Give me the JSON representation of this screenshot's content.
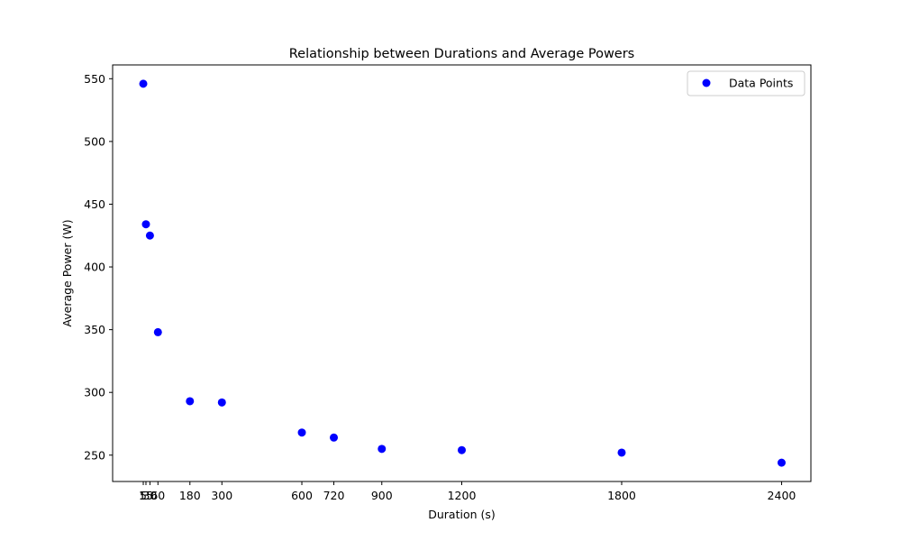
{
  "chart_data": {
    "type": "scatter",
    "title": "Relationship between Durations and Average Powers",
    "xlabel": "Duration (s)",
    "ylabel": "Average Power (W)",
    "xlim": [
      -110,
      2510
    ],
    "ylim": [
      229,
      561
    ],
    "x_ticks": [
      5,
      15,
      30,
      60,
      180,
      300,
      600,
      720,
      900,
      1200,
      1800,
      2400
    ],
    "x_tick_labels": [
      "5",
      "15",
      "30",
      "60",
      "180",
      "300",
      "600",
      "720",
      "900",
      "1200",
      "1800",
      "2400"
    ],
    "y_ticks": [
      250,
      300,
      350,
      400,
      450,
      500,
      550
    ],
    "y_tick_labels": [
      "250",
      "300",
      "350",
      "400",
      "450",
      "500",
      "550"
    ],
    "grid": false,
    "legend": {
      "position": "top-right",
      "entries": [
        "Data Points"
      ]
    },
    "series": [
      {
        "name": "Data Points",
        "color": "#0000ff",
        "points": [
          {
            "x": 5,
            "y": 546
          },
          {
            "x": 15,
            "y": 434
          },
          {
            "x": 30,
            "y": 425
          },
          {
            "x": 60,
            "y": 348
          },
          {
            "x": 180,
            "y": 293
          },
          {
            "x": 300,
            "y": 292
          },
          {
            "x": 600,
            "y": 268
          },
          {
            "x": 720,
            "y": 264
          },
          {
            "x": 900,
            "y": 255
          },
          {
            "x": 1200,
            "y": 254
          },
          {
            "x": 1800,
            "y": 252
          },
          {
            "x": 2400,
            "y": 244
          }
        ]
      }
    ]
  }
}
